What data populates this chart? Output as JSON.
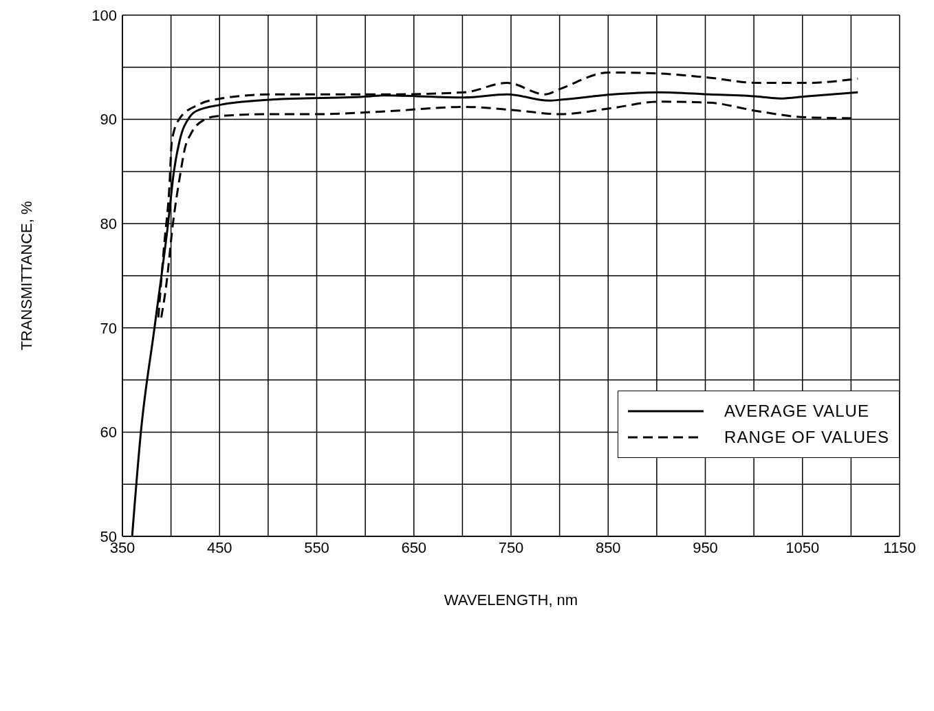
{
  "chart_data": {
    "type": "line",
    "xlabel": "WAVELENGTH, nm",
    "ylabel": "TRANSMITTANCE, %",
    "xlim": [
      350,
      1150
    ],
    "xticks": [
      350,
      {
        "value": 400,
        "label": null
      },
      450,
      {
        "value": 500,
        "label": null
      },
      550,
      {
        "value": 600,
        "label": null
      },
      650,
      {
        "value": 700,
        "label": null
      },
      750,
      {
        "value": 800,
        "label": null
      },
      850,
      {
        "value": 900,
        "label": null
      },
      950,
      {
        "value": 1000,
        "label": null
      },
      1050,
      {
        "value": 1100,
        "label": null
      },
      1150
    ],
    "ylim": [
      50,
      100
    ],
    "yticks": [
      50,
      {
        "value": 55,
        "label": null
      },
      60,
      {
        "value": 65,
        "label": null
      },
      70,
      {
        "value": 75,
        "label": null
      },
      80,
      {
        "value": 85,
        "label": null
      },
      90,
      {
        "value": 95,
        "label": null
      },
      100
    ],
    "grid": true,
    "legend": "right",
    "marker": "none",
    "series": [
      {
        "name": "AVERAGE VALUE",
        "color": "#000000",
        "line_style": "solid",
        "x": [
          360,
          369,
          383,
          397,
          403,
          409,
          419,
          426,
          451,
          504,
          603,
          619,
          702,
          746,
          789,
          803,
          855,
          902,
          954,
          1003,
          1027,
          1053,
          1107
        ],
        "values": [
          50,
          60,
          70,
          80,
          85,
          88,
          90.2,
          90.8,
          91.4,
          91.9,
          92.2,
          92.3,
          92.1,
          92.4,
          91.8,
          91.9,
          92.4,
          92.6,
          92.4,
          92.2,
          92.0,
          92.2,
          92.6
        ]
      },
      {
        "name": "RANGE OF VALUES",
        "color": "#000000",
        "line_style": "dashed",
        "x": [
          387,
          393,
          398,
          401,
          409,
          428,
          451,
          504,
          555,
          626,
          702,
          746,
          785,
          800,
          851,
          902,
          954,
          1003,
          1053,
          1107
        ],
        "values": [
          71,
          78,
          83,
          88,
          90.1,
          91.4,
          92.0,
          92.4,
          92.4,
          92.4,
          92.6,
          93.5,
          92.4,
          92.9,
          94.5,
          94.4,
          94.0,
          93.5,
          93.5,
          93.9
        ]
      },
      {
        "color": "#000000",
        "line_style": "dashed",
        "x": [
          390,
          395,
          402,
          410,
          414,
          421,
          433,
          447,
          504,
          550,
          626,
          702,
          751,
          801,
          855,
          902,
          954,
          1003,
          1053,
          1105
        ],
        "values": [
          71,
          74,
          80,
          85,
          87.1,
          88.7,
          89.9,
          90.3,
          90.5,
          90.5,
          90.8,
          91.2,
          90.9,
          90.5,
          91.1,
          91.7,
          91.6,
          90.8,
          90.2,
          90.1
        ]
      }
    ]
  }
}
